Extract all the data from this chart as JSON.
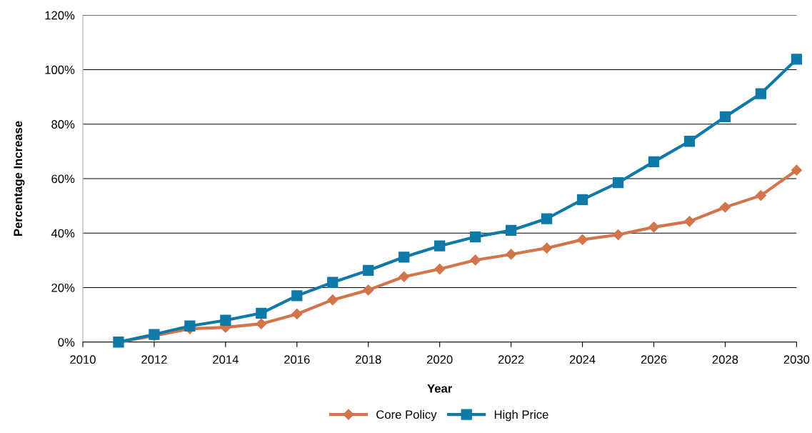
{
  "chart_data": {
    "type": "line",
    "xlabel": "Year",
    "ylabel": "Percentage Increase",
    "x": [
      2011,
      2012,
      2013,
      2014,
      2015,
      2016,
      2017,
      2018,
      2019,
      2020,
      2021,
      2022,
      2023,
      2024,
      2025,
      2026,
      2027,
      2028,
      2029,
      2030
    ],
    "series": [
      {
        "name": "Core Policy",
        "color": "#d2754a",
        "marker": "diamond",
        "values": [
          0,
          2.3,
          4.9,
          5.4,
          6.7,
          10.3,
          15.5,
          19.1,
          24.0,
          26.8,
          30.1,
          32.2,
          34.5,
          37.6,
          39.4,
          42.2,
          44.3,
          49.5,
          53.8,
          63.1
        ]
      },
      {
        "name": "High Price",
        "color": "#0f79a8",
        "marker": "square",
        "values": [
          0,
          2.8,
          5.9,
          8.0,
          10.6,
          17.0,
          21.9,
          26.3,
          31.2,
          35.3,
          38.6,
          41.0,
          45.3,
          52.3,
          58.5,
          66.2,
          73.7,
          82.7,
          91.2,
          103.8
        ]
      }
    ],
    "xlim": [
      2010,
      2030
    ],
    "xticks": [
      2010,
      2012,
      2014,
      2016,
      2018,
      2020,
      2022,
      2024,
      2026,
      2028,
      2030
    ],
    "ylim": [
      0,
      120
    ],
    "yticks": [
      {
        "value": 0,
        "label": "0%"
      },
      {
        "value": 20,
        "label": "20%"
      },
      {
        "value": 40,
        "label": "40%"
      },
      {
        "value": 60,
        "label": "60%"
      },
      {
        "value": 80,
        "label": "80%"
      },
      {
        "value": 100,
        "label": "100%"
      },
      {
        "value": 120,
        "label": "120%"
      }
    ],
    "grid": "y",
    "legend": "bottom",
    "line_style": "solid"
  }
}
